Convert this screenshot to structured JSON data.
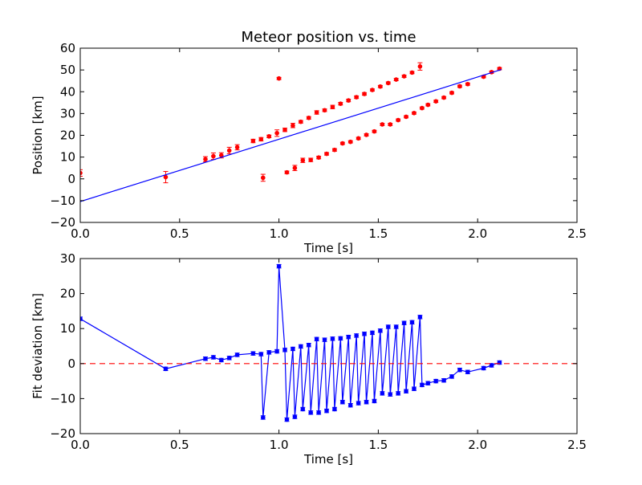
{
  "chart_data": [
    {
      "type": "scatter",
      "title": "Meteor position vs. time",
      "xlabel": "Time [s]",
      "ylabel": "Position [km]",
      "xlim": [
        0.0,
        2.5
      ],
      "ylim": [
        -20,
        60
      ],
      "xticks": [
        "0.0",
        "0.5",
        "1.0",
        "1.5",
        "2.0",
        "2.5"
      ],
      "yticks": [
        "−20",
        "−10",
        "0",
        "10",
        "20",
        "30",
        "40",
        "50",
        "60"
      ],
      "grid": false,
      "legend": "none",
      "series": [
        {
          "kind": "errorbar-points",
          "color": "#ff0000",
          "x": [
            0.0,
            0.43,
            0.63,
            0.67,
            0.71,
            0.75,
            0.79,
            0.87,
            0.91,
            0.92,
            0.95,
            0.99,
            1.0,
            1.03,
            1.04,
            1.07,
            1.08,
            1.11,
            1.12,
            1.15,
            1.16,
            1.19,
            1.2,
            1.23,
            1.24,
            1.27,
            1.28,
            1.31,
            1.32,
            1.35,
            1.36,
            1.39,
            1.4,
            1.43,
            1.44,
            1.47,
            1.48,
            1.51,
            1.52,
            1.55,
            1.56,
            1.59,
            1.6,
            1.63,
            1.64,
            1.67,
            1.68,
            1.71,
            1.72,
            1.75,
            1.79,
            1.83,
            1.87,
            1.91,
            1.95,
            2.03,
            2.07,
            2.11
          ],
          "y": [
            2.7,
            0.8,
            9.0,
            10.4,
            10.8,
            13.0,
            14.5,
            17.4,
            18.2,
            0.5,
            19.5,
            21.0,
            46.1,
            22.5,
            3.0,
            24.5,
            5.0,
            26.2,
            8.5,
            28.0,
            8.7,
            30.5,
            9.8,
            31.5,
            11.5,
            33.0,
            13.3,
            34.5,
            16.3,
            36.0,
            17.0,
            37.5,
            18.6,
            39.0,
            20.2,
            40.8,
            21.8,
            42.4,
            25.0,
            44.0,
            25.0,
            45.6,
            27.0,
            47.1,
            28.5,
            48.8,
            30.2,
            51.6,
            32.5,
            34.0,
            35.6,
            37.3,
            39.5,
            42.5,
            43.5,
            46.9,
            49.0,
            50.6
          ],
          "yerr": [
            1.5,
            2.6,
            1.2,
            1.5,
            1.2,
            1.5,
            1.2,
            0.8,
            0.8,
            1.6,
            0.6,
            1.5,
            0.5,
            0.8,
            0.6,
            1.0,
            1.2,
            0.6,
            1.0,
            0.6,
            0.8,
            0.8,
            0.6,
            0.6,
            0.6,
            0.8,
            0.6,
            0.6,
            0.5,
            0.6,
            0.5,
            0.6,
            0.5,
            0.6,
            0.5,
            0.5,
            0.5,
            0.5,
            0.5,
            0.5,
            0.5,
            0.5,
            0.5,
            0.5,
            0.5,
            0.5,
            0.5,
            1.7,
            0.5,
            0.5,
            0.5,
            0.5,
            0.5,
            0.5,
            0.5,
            0.5,
            0.5,
            0.5
          ]
        },
        {
          "kind": "fit-line",
          "color": "#0000ff",
          "x": [
            0.0,
            2.12
          ],
          "y": [
            -10.4,
            50.2
          ]
        }
      ]
    },
    {
      "type": "line",
      "title": "",
      "xlabel": "Time [s]",
      "ylabel": "Fit deviation [km]",
      "xlim": [
        0.0,
        2.5
      ],
      "ylim": [
        -20,
        30
      ],
      "xticks": [
        "0.0",
        "0.5",
        "1.0",
        "1.5",
        "2.0",
        "2.5"
      ],
      "yticks": [
        "−20",
        "−10",
        "0",
        "10",
        "20",
        "30"
      ],
      "grid": false,
      "legend": "none",
      "series": [
        {
          "kind": "errorbar-line",
          "color": "#0000ff",
          "x": [
            0.0,
            0.43,
            0.63,
            0.67,
            0.71,
            0.75,
            0.79,
            0.87,
            0.91,
            0.92,
            0.95,
            0.99,
            1.0,
            1.03,
            1.04,
            1.07,
            1.08,
            1.11,
            1.12,
            1.15,
            1.16,
            1.19,
            1.2,
            1.23,
            1.24,
            1.27,
            1.28,
            1.31,
            1.32,
            1.35,
            1.36,
            1.39,
            1.4,
            1.43,
            1.44,
            1.47,
            1.48,
            1.51,
            1.52,
            1.55,
            1.56,
            1.59,
            1.6,
            1.63,
            1.64,
            1.67,
            1.68,
            1.71,
            1.72,
            1.75,
            1.79,
            1.83,
            1.87,
            1.91,
            1.95,
            2.03,
            2.07,
            2.11
          ],
          "y": [
            12.8,
            -1.5,
            1.4,
            1.8,
            1.0,
            1.6,
            2.5,
            2.9,
            2.7,
            -15.4,
            3.2,
            3.5,
            27.8,
            3.9,
            -16.0,
            4.2,
            -15.2,
            4.9,
            -13.0,
            5.3,
            -14.0,
            7.0,
            -14.0,
            6.8,
            -13.5,
            7.1,
            -13.0,
            7.2,
            -11.0,
            7.6,
            -11.9,
            8.0,
            -11.3,
            8.5,
            -11.0,
            8.8,
            -10.7,
            9.4,
            -8.5,
            10.5,
            -8.8,
            10.5,
            -8.5,
            11.6,
            -7.9,
            11.8,
            -7.2,
            13.3,
            -6.1,
            -5.6,
            -5.0,
            -4.8,
            -3.7,
            -1.8,
            -2.4,
            -1.3,
            -0.5,
            0.3
          ]
        },
        {
          "kind": "reference-line",
          "color": "#ff0000",
          "style": "dashed",
          "y": 0
        }
      ]
    }
  ]
}
